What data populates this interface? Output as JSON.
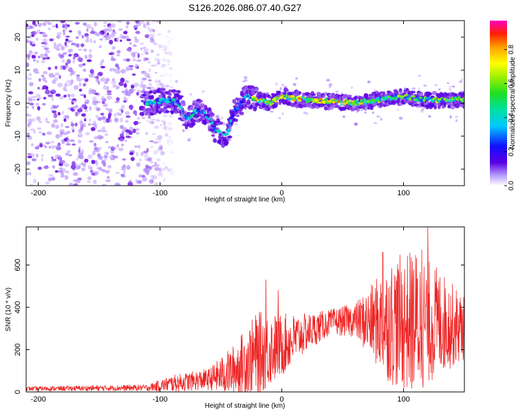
{
  "figure": {
    "title": "S126.2026.086.07.40.G27"
  },
  "chart_data": [
    {
      "type": "heatmap",
      "xlabel": "Height of straight line (km)",
      "ylabel": "Frequency (Hz)",
      "xlim": [
        -210,
        150
      ],
      "ylim": [
        -25,
        25
      ],
      "xticks": [
        -200,
        -100,
        0,
        100
      ],
      "yticks": [
        -20,
        -10,
        0,
        10,
        20
      ],
      "colorbar": {
        "label": "Normalized spectral amplitude",
        "range": [
          0,
          0.97
        ],
        "ticks": [
          "0.0",
          "0.2",
          "0.4",
          "0.6",
          "0.8"
        ],
        "tick_values": [
          0.0,
          0.2,
          0.4,
          0.6,
          0.8
        ],
        "colormap": "rainbow"
      },
      "description_points": {
        "noise_region_x": [
          -210,
          -100
        ],
        "ridge": [
          {
            "x": -110,
            "f": 0
          },
          {
            "x": -95,
            "f": 1
          },
          {
            "x": -85,
            "f": 0
          },
          {
            "x": -78,
            "f": -5
          },
          {
            "x": -70,
            "f": -2
          },
          {
            "x": -60,
            "f": -4
          },
          {
            "x": -55,
            "f": -8
          },
          {
            "x": -45,
            "f": -10
          },
          {
            "x": -40,
            "f": -3
          },
          {
            "x": -30,
            "f": 2
          },
          {
            "x": -20,
            "f": 1
          },
          {
            "x": -10,
            "f": 0
          },
          {
            "x": 0,
            "f": 2
          },
          {
            "x": 20,
            "f": 1
          },
          {
            "x": 40,
            "f": 0.5
          },
          {
            "x": 60,
            "f": 0
          },
          {
            "x": 80,
            "f": 1
          },
          {
            "x": 100,
            "f": 2
          },
          {
            "x": 120,
            "f": 1
          },
          {
            "x": 150,
            "f": 1
          }
        ]
      }
    },
    {
      "type": "line",
      "xlabel": "Height of straight line (km)",
      "ylabel": "SNR (10 * v/v)",
      "xlim": [
        -210,
        150
      ],
      "ylim": [
        0,
        780
      ],
      "xticks": [
        -200,
        -100,
        0,
        100
      ],
      "yticks": [
        0,
        200,
        400,
        600
      ],
      "color": "#ee2222",
      "envelope": [
        {
          "x": -210,
          "base": 15,
          "amp": 10
        },
        {
          "x": -110,
          "base": 20,
          "amp": 15
        },
        {
          "x": -90,
          "base": 40,
          "amp": 40
        },
        {
          "x": -60,
          "base": 60,
          "amp": 50
        },
        {
          "x": -40,
          "base": 100,
          "amp": 120
        },
        {
          "x": -20,
          "base": 180,
          "amp": 200
        },
        {
          "x": 0,
          "base": 220,
          "amp": 150
        },
        {
          "x": 20,
          "base": 280,
          "amp": 90
        },
        {
          "x": 40,
          "base": 330,
          "amp": 60
        },
        {
          "x": 60,
          "base": 340,
          "amp": 80
        },
        {
          "x": 70,
          "base": 330,
          "amp": 150
        },
        {
          "x": 90,
          "base": 330,
          "amp": 300
        },
        {
          "x": 110,
          "base": 330,
          "amp": 350
        },
        {
          "x": 130,
          "base": 330,
          "amp": 250
        },
        {
          "x": 150,
          "base": 300,
          "amp": 150
        }
      ],
      "peaks": [
        {
          "x": -13,
          "y": 530
        },
        {
          "x": -3,
          "y": 480
        },
        {
          "x": 120,
          "y": 780
        },
        {
          "x": 115,
          "y": 670
        },
        {
          "x": 83,
          "y": 660
        }
      ]
    }
  ]
}
